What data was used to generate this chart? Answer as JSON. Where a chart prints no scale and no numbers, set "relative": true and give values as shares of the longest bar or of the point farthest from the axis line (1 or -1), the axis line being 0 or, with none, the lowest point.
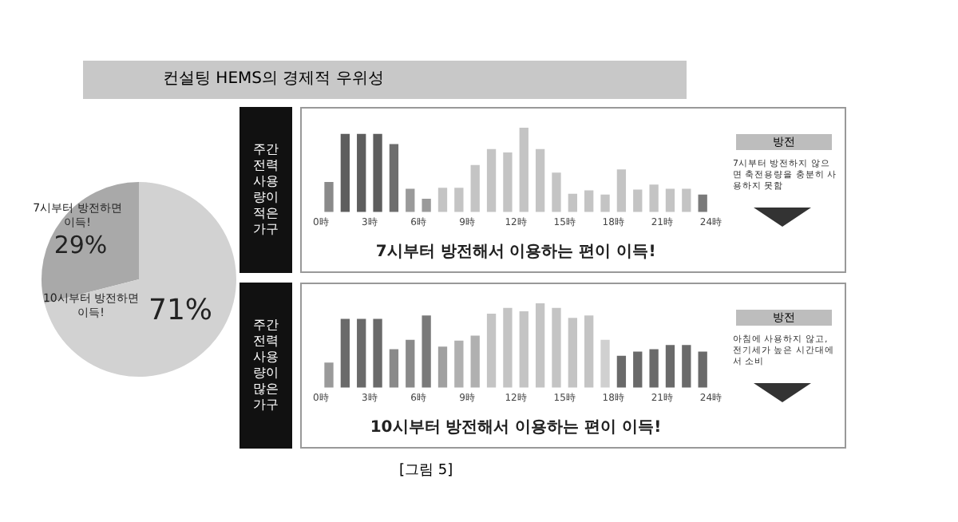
{
  "chart_data": [
    {
      "type": "pie",
      "title": "컨설팅 HEMS의 경제적 우위성",
      "categories": [
        "7시부터 방전하면 이득!",
        "10시부터 방전하면 이득!"
      ],
      "values": [
        29,
        71
      ],
      "colors": [
        "#a9a9a9",
        "#d2d2d2"
      ],
      "value_labels": [
        "29%",
        "71%"
      ],
      "annotations": [
        "[그림 5]"
      ]
    },
    {
      "type": "bar",
      "title": "주간 전력 사용량이 적은 가구",
      "xlabel": "7시부터 방전해서 이용하는 편이 이득!",
      "relative": true,
      "x": [
        0.5,
        1.5,
        2.5,
        3.5,
        4.5,
        5.5,
        6.5,
        7.5,
        8.5,
        9.5,
        10.5,
        11.5,
        12.5,
        13.5,
        14.5,
        15.5,
        16.5,
        17.5,
        18.5,
        19.5,
        20.5,
        21.5,
        22.5,
        23.5
      ],
      "values": [
        0.35,
        0.92,
        0.92,
        0.92,
        0.8,
        0.27,
        0.15,
        0.28,
        0.28,
        0.55,
        0.74,
        0.7,
        1,
        0.74,
        0.46,
        0.21,
        0.25,
        0.2,
        0.5,
        0.26,
        0.32,
        0.27,
        0.27,
        0.2
      ],
      "colors": [
        "#8a8a8a",
        "#5e5e5e",
        "#5e5e5e",
        "#5e5e5e",
        "#6e6e6e",
        "#9a9a9a",
        "#9a9a9a",
        "#c4c4c4",
        "#c4c4c4",
        "#c4c4c4",
        "#c4c4c4",
        "#c4c4c4",
        "#c4c4c4",
        "#c4c4c4",
        "#c4c4c4",
        "#c4c4c4",
        "#c4c4c4",
        "#c4c4c4",
        "#c4c4c4",
        "#c4c4c4",
        "#c4c4c4",
        "#c4c4c4",
        "#c4c4c4",
        "#7a7a7a"
      ],
      "xlim": [
        0,
        24
      ],
      "xticks": [
        {
          "value": 0,
          "label": "0時"
        },
        {
          "value": 3,
          "label": "3時"
        },
        {
          "value": 6,
          "label": "6時"
        },
        {
          "value": 9,
          "label": "9時"
        },
        {
          "value": 12,
          "label": "12時"
        },
        {
          "value": 15,
          "label": "15時"
        },
        {
          "value": 18,
          "label": "18時"
        },
        {
          "value": 21,
          "label": "21時"
        },
        {
          "value": 24,
          "label": "24時"
        }
      ],
      "tick_labels": "x",
      "annotations": [
        "방전",
        "7시부터 방전하지 않으면 축전용량을 충분히 사용하지 못함"
      ]
    },
    {
      "type": "bar",
      "title": "주간 전력 사용량이 많은 가구",
      "xlabel": "10시부터 방전해서 이용하는 편이 이득!",
      "relative": true,
      "x": [
        0.5,
        1.5,
        2.5,
        3.5,
        4.5,
        5.5,
        6.5,
        7.5,
        8.5,
        9.5,
        10.5,
        11.5,
        12.5,
        13.5,
        14.5,
        15.5,
        16.5,
        17.5,
        18.5,
        19.5,
        20.5,
        21.5,
        22.5,
        23.5
      ],
      "values": [
        0.29,
        0.81,
        0.81,
        0.81,
        0.45,
        0.56,
        0.85,
        0.48,
        0.55,
        0.61,
        0.87,
        0.94,
        0.9,
        1,
        0.94,
        0.82,
        0.85,
        0.56,
        0.37,
        0.42,
        0.45,
        0.5,
        0.5,
        0.42
      ],
      "colors": [
        "#9a9a9a",
        "#6a6a6a",
        "#6a6a6a",
        "#6a6a6a",
        "#8a8a8a",
        "#8a8a8a",
        "#7a7a7a",
        "#a0a0a0",
        "#b0b0b0",
        "#b0b0b0",
        "#c4c4c4",
        "#c4c4c4",
        "#c4c4c4",
        "#c4c4c4",
        "#c4c4c4",
        "#c4c4c4",
        "#c4c4c4",
        "#d0d0d0",
        "#6a6a6a",
        "#6a6a6a",
        "#6a6a6a",
        "#6a6a6a",
        "#6a6a6a",
        "#6a6a6a"
      ],
      "xlim": [
        0,
        24
      ],
      "xticks": [
        {
          "value": 0,
          "label": "0時"
        },
        {
          "value": 3,
          "label": "3時"
        },
        {
          "value": 6,
          "label": "6時"
        },
        {
          "value": 9,
          "label": "9時"
        },
        {
          "value": 12,
          "label": "12時"
        },
        {
          "value": 15,
          "label": "15時"
        },
        {
          "value": 18,
          "label": "18時"
        },
        {
          "value": 21,
          "label": "21時"
        },
        {
          "value": 24,
          "label": "24時"
        }
      ],
      "tick_labels": "x",
      "annotations": [
        "방전",
        "아침에 사용하지 않고, 전기세가 높은 시간대에서 소비"
      ]
    }
  ]
}
